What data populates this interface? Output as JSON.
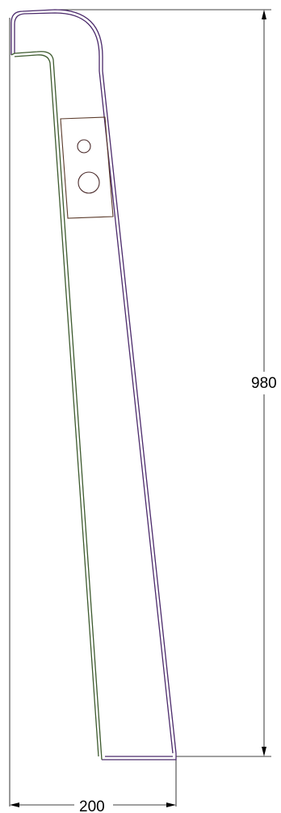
{
  "drawing": {
    "dimensions": {
      "height_label": "980",
      "width_label": "200"
    },
    "colors": {
      "outer_edge": "#4b2a6b",
      "inner_edge": "#3d5a2e",
      "plate": "#5a3a2a",
      "dimension_lines": "#000000"
    }
  }
}
